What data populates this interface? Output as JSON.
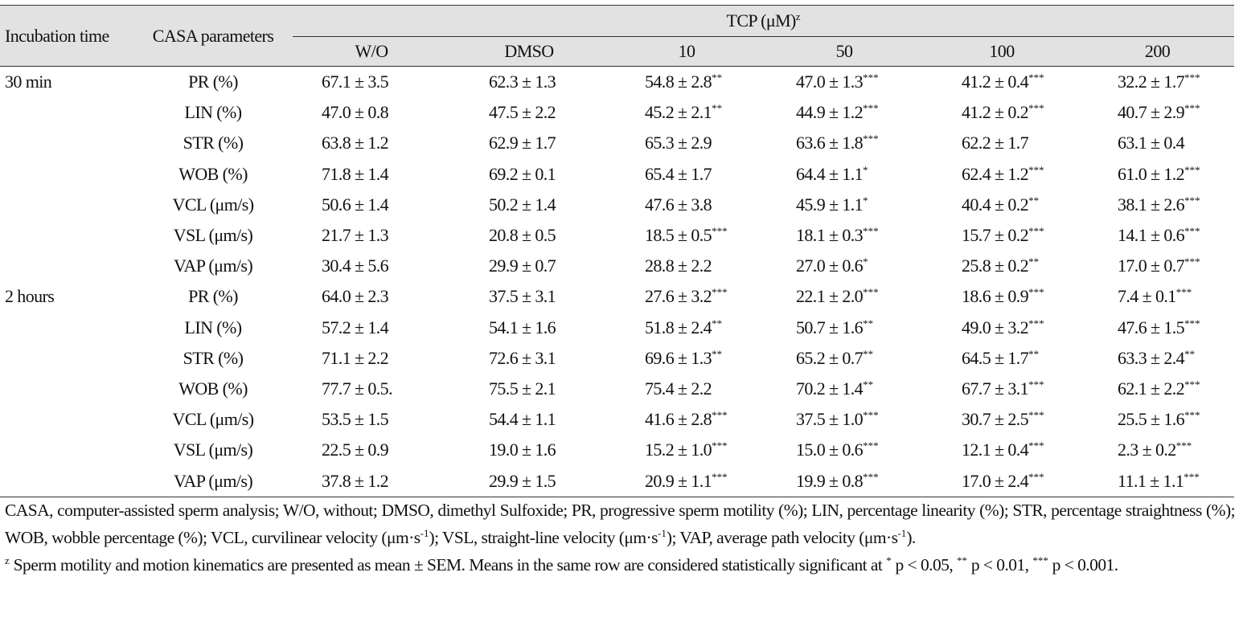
{
  "header": {
    "incubation_time": "Incubation time",
    "casa_parameters": "CASA parameters",
    "tcp_label": "TCP (μM)",
    "tcp_sup": "z",
    "doses": [
      "W/O",
      "DMSO",
      "10",
      "50",
      "100",
      "200"
    ]
  },
  "groups": [
    {
      "label": "30 min",
      "rows": [
        {
          "param": "PR (%)",
          "cells": [
            {
              "v": "67.1 ± 3.5",
              "sig": ""
            },
            {
              "v": "62.3 ± 1.3",
              "sig": ""
            },
            {
              "v": "54.8 ± 2.8",
              "sig": "**"
            },
            {
              "v": "47.0 ± 1.3",
              "sig": "***"
            },
            {
              "v": "41.2 ± 0.4",
              "sig": "***"
            },
            {
              "v": "32.2 ± 1.7",
              "sig": "***"
            }
          ]
        },
        {
          "param": "LIN (%)",
          "cells": [
            {
              "v": "47.0 ± 0.8",
              "sig": ""
            },
            {
              "v": "47.5 ± 2.2",
              "sig": ""
            },
            {
              "v": "45.2 ± 2.1",
              "sig": "**"
            },
            {
              "v": "44.9 ± 1.2",
              "sig": "***"
            },
            {
              "v": "41.2 ± 0.2",
              "sig": "***"
            },
            {
              "v": "40.7 ± 2.9",
              "sig": "***"
            }
          ]
        },
        {
          "param": "STR (%)",
          "cells": [
            {
              "v": "63.8 ± 1.2",
              "sig": ""
            },
            {
              "v": "62.9 ± 1.7",
              "sig": ""
            },
            {
              "v": "65.3 ± 2.9",
              "sig": ""
            },
            {
              "v": "63.6 ± 1.8",
              "sig": "***"
            },
            {
              "v": "62.2 ± 1.7",
              "sig": ""
            },
            {
              "v": "63.1 ± 0.4",
              "sig": ""
            }
          ]
        },
        {
          "param": "WOB (%)",
          "cells": [
            {
              "v": "71.8 ± 1.4",
              "sig": ""
            },
            {
              "v": "69.2 ± 0.1",
              "sig": ""
            },
            {
              "v": "65.4 ± 1.7",
              "sig": ""
            },
            {
              "v": "64.4 ± 1.1",
              "sig": "*"
            },
            {
              "v": "62.4 ± 1.2",
              "sig": "***"
            },
            {
              "v": "61.0 ± 1.2",
              "sig": "***"
            }
          ]
        },
        {
          "param": "VCL (μm/s)",
          "cells": [
            {
              "v": "50.6 ± 1.4",
              "sig": ""
            },
            {
              "v": "50.2 ± 1.4",
              "sig": ""
            },
            {
              "v": "47.6 ± 3.8",
              "sig": ""
            },
            {
              "v": "45.9 ± 1.1",
              "sig": "*"
            },
            {
              "v": "40.4 ± 0.2",
              "sig": "**"
            },
            {
              "v": "38.1 ± 2.6",
              "sig": "***"
            }
          ]
        },
        {
          "param": "VSL (μm/s)",
          "cells": [
            {
              "v": "21.7 ± 1.3",
              "sig": ""
            },
            {
              "v": "20.8 ± 0.5",
              "sig": ""
            },
            {
              "v": "18.5 ± 0.5",
              "sig": "***"
            },
            {
              "v": "18.1 ± 0.3",
              "sig": "***"
            },
            {
              "v": "15.7 ± 0.2",
              "sig": "***"
            },
            {
              "v": "14.1 ± 0.6",
              "sig": "***"
            }
          ]
        },
        {
          "param": "VAP (μm/s)",
          "cells": [
            {
              "v": "30.4 ± 5.6",
              "sig": ""
            },
            {
              "v": "29.9 ± 0.7",
              "sig": ""
            },
            {
              "v": "28.8 ± 2.2",
              "sig": ""
            },
            {
              "v": "27.0 ± 0.6",
              "sig": "*"
            },
            {
              "v": "25.8 ± 0.2",
              "sig": "**"
            },
            {
              "v": "17.0 ± 0.7",
              "sig": "***"
            }
          ]
        }
      ]
    },
    {
      "label": "2 hours",
      "rows": [
        {
          "param": "PR (%)",
          "cells": [
            {
              "v": "64.0 ± 2.3",
              "sig": ""
            },
            {
              "v": "37.5 ± 3.1",
              "sig": ""
            },
            {
              "v": "27.6 ± 3.2",
              "sig": "***"
            },
            {
              "v": "22.1 ± 2.0",
              "sig": "***"
            },
            {
              "v": "18.6 ± 0.9",
              "sig": "***"
            },
            {
              "v": "7.4 ± 0.1",
              "sig": "***"
            }
          ]
        },
        {
          "param": "LIN (%)",
          "cells": [
            {
              "v": "57.2 ± 1.4",
              "sig": ""
            },
            {
              "v": "54.1 ± 1.6",
              "sig": ""
            },
            {
              "v": "51.8 ± 2.4",
              "sig": "**"
            },
            {
              "v": "50.7 ± 1.6",
              "sig": "**"
            },
            {
              "v": "49.0 ± 3.2",
              "sig": "***"
            },
            {
              "v": "47.6 ± 1.5",
              "sig": "***"
            }
          ]
        },
        {
          "param": "STR (%)",
          "cells": [
            {
              "v": "71.1 ± 2.2",
              "sig": ""
            },
            {
              "v": "72.6 ± 3.1",
              "sig": ""
            },
            {
              "v": "69.6 ± 1.3",
              "sig": "**"
            },
            {
              "v": "65.2 ± 0.7",
              "sig": "**"
            },
            {
              "v": "64.5 ± 1.7",
              "sig": "**"
            },
            {
              "v": "63.3 ± 2.4",
              "sig": "**"
            }
          ]
        },
        {
          "param": "WOB (%)",
          "cells": [
            {
              "v": "77.7 ± 0.5.",
              "sig": ""
            },
            {
              "v": "75.5 ± 2.1",
              "sig": ""
            },
            {
              "v": "75.4 ± 2.2",
              "sig": ""
            },
            {
              "v": "70.2 ± 1.4",
              "sig": "**"
            },
            {
              "v": "67.7 ± 3.1",
              "sig": "***"
            },
            {
              "v": "62.1 ± 2.2",
              "sig": "***"
            }
          ]
        },
        {
          "param": "VCL (μm/s)",
          "cells": [
            {
              "v": "53.5 ± 1.5",
              "sig": ""
            },
            {
              "v": "54.4 ± 1.1",
              "sig": ""
            },
            {
              "v": "41.6 ± 2.8",
              "sig": "***"
            },
            {
              "v": "37.5 ± 1.0",
              "sig": "***"
            },
            {
              "v": "30.7 ± 2.5",
              "sig": "***"
            },
            {
              "v": "25.5 ± 1.6",
              "sig": "***"
            }
          ]
        },
        {
          "param": "VSL (μm/s)",
          "cells": [
            {
              "v": "22.5 ± 0.9",
              "sig": ""
            },
            {
              "v": "19.0 ± 1.6",
              "sig": ""
            },
            {
              "v": "15.2 ± 1.0",
              "sig": "***"
            },
            {
              "v": "15.0 ± 0.6",
              "sig": "***"
            },
            {
              "v": "12.1 ± 0.4",
              "sig": "***"
            },
            {
              "v": "2.3 ± 0.2",
              "sig": "***"
            }
          ]
        },
        {
          "param": "VAP (μm/s)",
          "cells": [
            {
              "v": "37.8 ± 1.2",
              "sig": ""
            },
            {
              "v": "29.9 ± 1.5",
              "sig": ""
            },
            {
              "v": "20.9 ± 1.1",
              "sig": "***"
            },
            {
              "v": "19.9 ± 0.8",
              "sig": "***"
            },
            {
              "v": "17.0 ± 2.4",
              "sig": "***"
            },
            {
              "v": "11.1 ± 1.1",
              "sig": "***"
            }
          ]
        }
      ]
    }
  ],
  "footnotes": {
    "abbr": {
      "p1": "CASA, computer-assisted sperm analysis; W/O, without; DMSO, dimethyl Sulfoxide; PR, progressive sperm motility (%); LIN, percentage linearity (%); STR, percentage straightness (%); WOB, wobble percentage (%); VCL, curvilinear velocity (μm·s",
      "sup1": "-1",
      "p2": "); VSL, straight-line velocity (μm·s",
      "sup2": "-1",
      "p3": "); VAP, average path velocity (μm·s",
      "sup3": "-1",
      "p4": ")."
    },
    "stat": {
      "marker": "z",
      "p1": " Sperm motility and motion kinematics are presented as mean ± SEM. Means in the same row are considered statistically significant at ",
      "s1": "*",
      "p2": " p < 0.05, ",
      "s2": "**",
      "p3": " p < 0.01, ",
      "s3": "***",
      "p4": " p < 0.001."
    }
  }
}
